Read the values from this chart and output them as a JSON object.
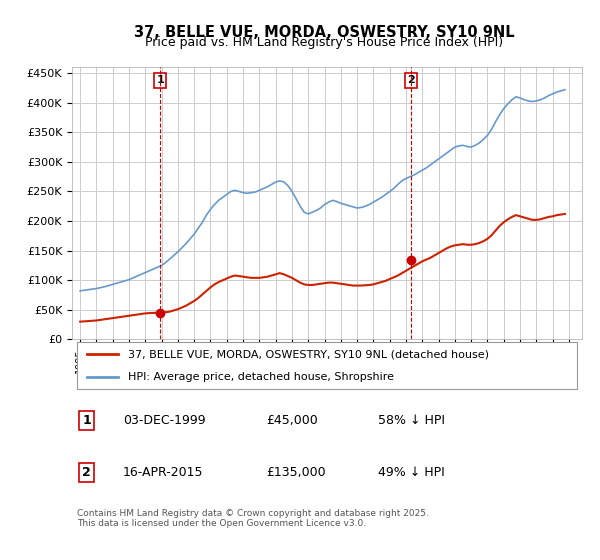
{
  "title": "37, BELLE VUE, MORDA, OSWESTRY, SY10 9NL",
  "subtitle": "Price paid vs. HM Land Registry's House Price Index (HPI)",
  "legend_line1": "37, BELLE VUE, MORDA, OSWESTRY, SY10 9NL (detached house)",
  "legend_line2": "HPI: Average price, detached house, Shropshire",
  "footnote": "Contains HM Land Registry data © Crown copyright and database right 2025.\nThis data is licensed under the Open Government Licence v3.0.",
  "sale1_label": "1",
  "sale1_date": "03-DEC-1999",
  "sale1_price": "£45,000",
  "sale1_hpi": "58% ↓ HPI",
  "sale2_label": "2",
  "sale2_date": "16-APR-2015",
  "sale2_price": "£135,000",
  "sale2_hpi": "49% ↓ HPI",
  "sale1_x": 1999.92,
  "sale1_y": 45000,
  "sale2_x": 2015.29,
  "sale2_y": 135000,
  "hpi_color": "#6699cc",
  "price_color": "#cc2200",
  "marker_color": "#cc0000",
  "ylim": [
    0,
    460000
  ],
  "xlim_start": 1994.5,
  "xlim_end": 2025.8,
  "background_color": "#ffffff",
  "grid_color": "#cccccc",
  "hpi_data_x": [
    1995.0,
    1995.25,
    1995.5,
    1995.75,
    1996.0,
    1996.25,
    1996.5,
    1996.75,
    1997.0,
    1997.25,
    1997.5,
    1997.75,
    1998.0,
    1998.25,
    1998.5,
    1998.75,
    1999.0,
    1999.25,
    1999.5,
    1999.75,
    2000.0,
    2000.25,
    2000.5,
    2000.75,
    2001.0,
    2001.25,
    2001.5,
    2001.75,
    2002.0,
    2002.25,
    2002.5,
    2002.75,
    2003.0,
    2003.25,
    2003.5,
    2003.75,
    2004.0,
    2004.25,
    2004.5,
    2004.75,
    2005.0,
    2005.25,
    2005.5,
    2005.75,
    2006.0,
    2006.25,
    2006.5,
    2006.75,
    2007.0,
    2007.25,
    2007.5,
    2007.75,
    2008.0,
    2008.25,
    2008.5,
    2008.75,
    2009.0,
    2009.25,
    2009.5,
    2009.75,
    2010.0,
    2010.25,
    2010.5,
    2010.75,
    2011.0,
    2011.25,
    2011.5,
    2011.75,
    2012.0,
    2012.25,
    2012.5,
    2012.75,
    2013.0,
    2013.25,
    2013.5,
    2013.75,
    2014.0,
    2014.25,
    2014.5,
    2014.75,
    2015.0,
    2015.25,
    2015.5,
    2015.75,
    2016.0,
    2016.25,
    2016.5,
    2016.75,
    2017.0,
    2017.25,
    2017.5,
    2017.75,
    2018.0,
    2018.25,
    2018.5,
    2018.75,
    2019.0,
    2019.25,
    2019.5,
    2019.75,
    2020.0,
    2020.25,
    2020.5,
    2020.75,
    2021.0,
    2021.25,
    2021.5,
    2021.75,
    2022.0,
    2022.25,
    2022.5,
    2022.75,
    2023.0,
    2023.25,
    2023.5,
    2023.75,
    2024.0,
    2024.25,
    2024.5,
    2024.75
  ],
  "hpi_data_y": [
    82000,
    83000,
    84000,
    85000,
    86000,
    87500,
    89000,
    91000,
    93000,
    95000,
    97000,
    99000,
    101000,
    104000,
    107000,
    110000,
    113000,
    116000,
    119000,
    122000,
    125000,
    130000,
    136000,
    142000,
    148000,
    155000,
    162000,
    170000,
    178000,
    188000,
    198000,
    210000,
    220000,
    228000,
    235000,
    240000,
    245000,
    250000,
    252000,
    250000,
    248000,
    247000,
    248000,
    249000,
    252000,
    255000,
    258000,
    262000,
    266000,
    268000,
    266000,
    260000,
    250000,
    238000,
    225000,
    215000,
    212000,
    215000,
    218000,
    222000,
    228000,
    232000,
    235000,
    233000,
    230000,
    228000,
    226000,
    224000,
    222000,
    223000,
    225000,
    228000,
    232000,
    236000,
    240000,
    245000,
    250000,
    255000,
    262000,
    268000,
    272000,
    275000,
    278000,
    282000,
    286000,
    290000,
    295000,
    300000,
    305000,
    310000,
    315000,
    320000,
    325000,
    327000,
    328000,
    326000,
    325000,
    328000,
    332000,
    338000,
    345000,
    355000,
    368000,
    380000,
    390000,
    398000,
    405000,
    410000,
    408000,
    405000,
    403000,
    402000,
    403000,
    405000,
    408000,
    412000,
    415000,
    418000,
    420000,
    422000
  ],
  "price_data_x": [
    1995.0,
    1995.25,
    1995.5,
    1995.75,
    1996.0,
    1996.25,
    1996.5,
    1996.75,
    1997.0,
    1997.25,
    1997.5,
    1997.75,
    1998.0,
    1998.25,
    1998.5,
    1998.75,
    1999.0,
    1999.25,
    1999.5,
    1999.75,
    2000.0,
    2000.25,
    2000.5,
    2000.75,
    2001.0,
    2001.25,
    2001.5,
    2001.75,
    2002.0,
    2002.25,
    2002.5,
    2002.75,
    2003.0,
    2003.25,
    2003.5,
    2003.75,
    2004.0,
    2004.25,
    2004.5,
    2004.75,
    2005.0,
    2005.25,
    2005.5,
    2005.75,
    2006.0,
    2006.25,
    2006.5,
    2006.75,
    2007.0,
    2007.25,
    2007.5,
    2007.75,
    2008.0,
    2008.25,
    2008.5,
    2008.75,
    2009.0,
    2009.25,
    2009.5,
    2009.75,
    2010.0,
    2010.25,
    2010.5,
    2010.75,
    2011.0,
    2011.25,
    2011.5,
    2011.75,
    2012.0,
    2012.25,
    2012.5,
    2012.75,
    2013.0,
    2013.25,
    2013.5,
    2013.75,
    2014.0,
    2014.25,
    2014.5,
    2014.75,
    2015.0,
    2015.25,
    2015.5,
    2015.75,
    2016.0,
    2016.25,
    2016.5,
    2016.75,
    2017.0,
    2017.25,
    2017.5,
    2017.75,
    2018.0,
    2018.25,
    2018.5,
    2018.75,
    2019.0,
    2019.25,
    2019.5,
    2019.75,
    2020.0,
    2020.25,
    2020.5,
    2020.75,
    2021.0,
    2021.25,
    2021.5,
    2021.75,
    2022.0,
    2022.25,
    2022.5,
    2022.75,
    2023.0,
    2023.25,
    2023.5,
    2023.75,
    2024.0,
    2024.25,
    2024.5,
    2024.75
  ],
  "price_data_y": [
    30000,
    30500,
    31000,
    31500,
    32000,
    33000,
    34000,
    35000,
    36000,
    37000,
    38000,
    39000,
    40000,
    41000,
    42000,
    43000,
    44000,
    44500,
    44800,
    45000,
    45200,
    46000,
    47000,
    49000,
    51000,
    54000,
    57000,
    61000,
    65000,
    70000,
    76000,
    82000,
    88000,
    93000,
    97000,
    100000,
    103000,
    106000,
    108000,
    107000,
    106000,
    105000,
    104000,
    104000,
    104000,
    105000,
    106000,
    108000,
    110000,
    112000,
    110000,
    107000,
    104000,
    100000,
    96000,
    93000,
    92000,
    92000,
    93000,
    94000,
    95000,
    96000,
    96000,
    95000,
    94000,
    93000,
    92000,
    91000,
    91000,
    91000,
    91500,
    92000,
    93000,
    95000,
    97000,
    99000,
    102000,
    105000,
    108000,
    112000,
    116000,
    120000,
    124000,
    128000,
    132000,
    135000,
    138000,
    142000,
    146000,
    150000,
    154000,
    157000,
    159000,
    160000,
    161000,
    160000,
    160000,
    161000,
    163000,
    166000,
    170000,
    176000,
    184000,
    192000,
    198000,
    203000,
    207000,
    210000,
    208000,
    206000,
    204000,
    202000,
    202000,
    203000,
    205000,
    207000,
    208000,
    210000,
    211000,
    212000
  ]
}
